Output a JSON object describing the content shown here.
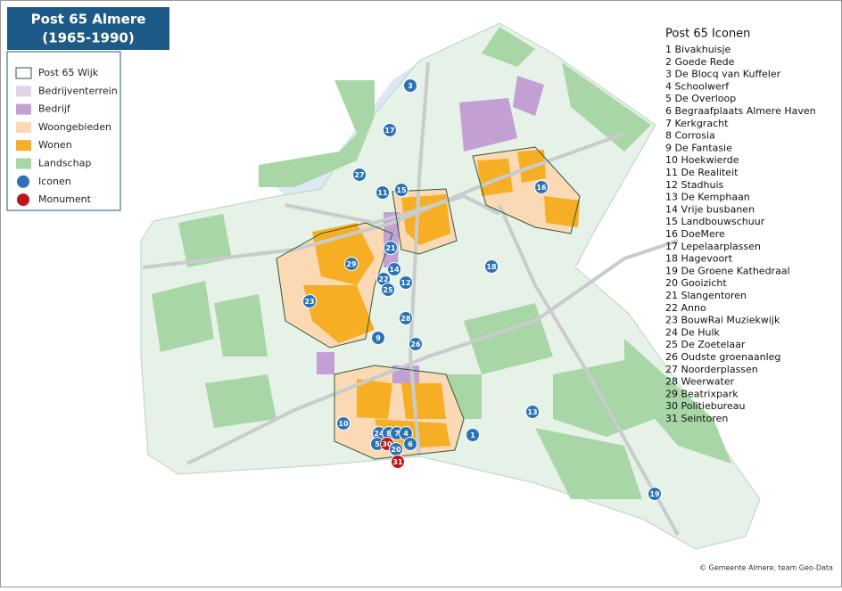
{
  "title": {
    "line1": "Post 65 Almere",
    "line2": "(1965-1990)"
  },
  "legend": [
    {
      "label": "Post 65 Wijk",
      "color": "#ffffff",
      "shape": "box"
    },
    {
      "label": "Bedrijventerrein",
      "color": "#e3d3ea",
      "shape": "box"
    },
    {
      "label": "Bedrijf",
      "color": "#c3a0d3",
      "shape": "box"
    },
    {
      "label": "Woongebieden",
      "color": "#fbd9b4",
      "shape": "box"
    },
    {
      "label": "Wonen",
      "color": "#f6ae24",
      "shape": "box"
    },
    {
      "label": "Landschap",
      "color": "#a9d6a6",
      "shape": "box"
    },
    {
      "label": "Iconen",
      "color": "#2a72b5",
      "shape": "circle"
    },
    {
      "label": "Monument",
      "color": "#c0141c",
      "shape": "circle"
    }
  ],
  "icons": {
    "title": "Post 65 Iconen",
    "items": [
      "1 Bivakhuisje",
      "2 Goede Rede",
      "3 De Blocq van Kuffeler",
      "4 Schoolwerf",
      "5 De Overloop",
      "6 Begraafplaats Almere Haven",
      "7 Kerkgracht",
      "8 Corrosia",
      "9 De Fantasie",
      "10 Hoekwierde",
      "11 De Realiteit",
      "12 Stadhuis",
      "13 De Kemphaan",
      "14 Vrije busbanen",
      "15 Landbouwschuur",
      "16 DoeMere",
      "17 Lepelaarplassen",
      "18 Hagevoort",
      "19 De Groene Kathedraal",
      "20 Gooizicht",
      "21 Slangentoren",
      "22 Anno",
      "23 BouwRai Muziekwijk",
      "24 De Hulk",
      "25 De Zoetelaar",
      "26 Oudste groenaanleg",
      "27 Noorderplassen",
      "28 Weerwater",
      "29 Beatrixpark",
      "30 Politiebureau",
      "31 Seintoren"
    ]
  },
  "markers": [
    {
      "label": "3",
      "color": "#2a72b5"
    },
    {
      "label": "17",
      "color": "#2a72b5"
    },
    {
      "label": "27",
      "color": "#2a72b5"
    },
    {
      "label": "11",
      "color": "#2a72b5"
    },
    {
      "label": "15",
      "color": "#2a72b5"
    },
    {
      "label": "16",
      "color": "#2a72b5"
    },
    {
      "label": "21",
      "color": "#2a72b5"
    },
    {
      "label": "29",
      "color": "#2a72b5"
    },
    {
      "label": "14",
      "color": "#2a72b5"
    },
    {
      "label": "22",
      "color": "#2a72b5"
    },
    {
      "label": "12",
      "color": "#2a72b5"
    },
    {
      "label": "25",
      "color": "#2a72b5"
    },
    {
      "label": "18",
      "color": "#2a72b5"
    },
    {
      "label": "23",
      "color": "#2a72b5"
    },
    {
      "label": "28",
      "color": "#2a72b5"
    },
    {
      "label": "9",
      "color": "#2a72b5"
    },
    {
      "label": "26",
      "color": "#2a72b5"
    },
    {
      "label": "10",
      "color": "#2a72b5"
    },
    {
      "label": "24",
      "color": "#2a72b5"
    },
    {
      "label": "8",
      "color": "#2a72b5"
    },
    {
      "label": "7",
      "color": "#2a72b5"
    },
    {
      "label": "4",
      "color": "#2a72b5"
    },
    {
      "label": "5",
      "color": "#2a72b5"
    },
    {
      "label": "30",
      "color": "#c0141c"
    },
    {
      "label": "6",
      "color": "#2a72b5"
    },
    {
      "label": "1",
      "color": "#2a72b5"
    },
    {
      "label": "20",
      "color": "#2a72b5"
    },
    {
      "label": "31",
      "color": "#c0141c"
    },
    {
      "label": "13",
      "color": "#2a72b5"
    },
    {
      "label": "19",
      "color": "#2a72b5"
    }
  ],
  "copyright": "© Gemeente Almere, team Geo-Data"
}
